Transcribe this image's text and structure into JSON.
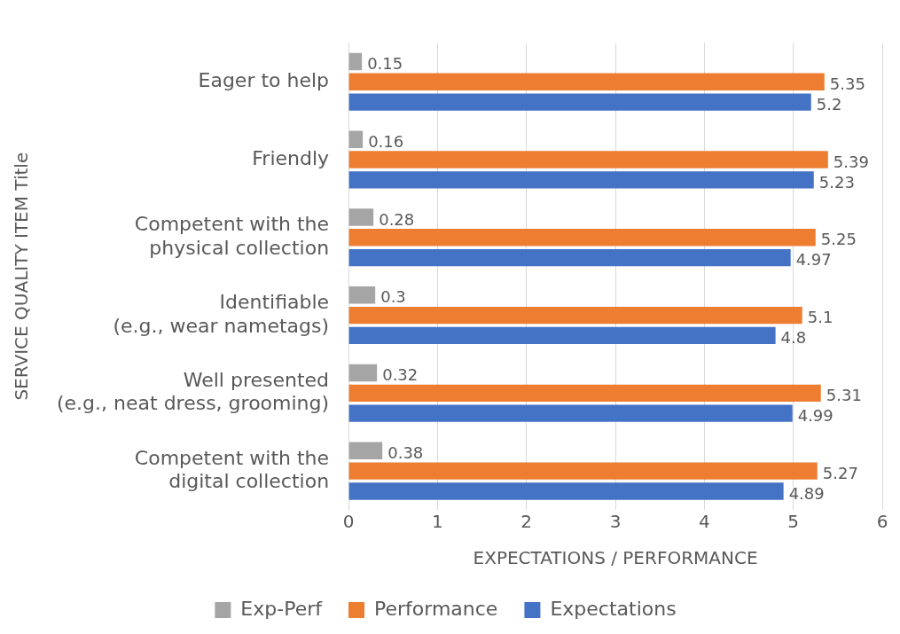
{
  "chart_data": {
    "type": "bar",
    "orientation": "horizontal",
    "xlabel": "EXPECTATIONS / PERFORMANCE",
    "ylabel": "SERVICE QUALITY ITEM Title",
    "categories": [
      "Eager to help",
      "Friendly",
      "Competent with the physical collection",
      "Identifiable (e.g., wear nametags)",
      "Well presented (e.g., neat dress, grooming)",
      "Competent with the digital collection"
    ],
    "series": [
      {
        "name": "Exp-Perf",
        "color": "#a5a5a5",
        "values": [
          0.15,
          0.16,
          0.28,
          0.3,
          0.32,
          0.38
        ]
      },
      {
        "name": "Performance",
        "color": "#ed7d31",
        "values": [
          5.35,
          5.39,
          5.25,
          5.1,
          5.31,
          5.27
        ]
      },
      {
        "name": "Expectations",
        "color": "#4472c4",
        "values": [
          5.2,
          5.23,
          4.97,
          4.8,
          4.99,
          4.89
        ]
      }
    ],
    "xlim": [
      0,
      6
    ],
    "xticks": [
      0,
      1,
      2,
      3,
      4,
      5,
      6
    ],
    "grid": "x",
    "legend": "bottom",
    "data_labels": true
  }
}
